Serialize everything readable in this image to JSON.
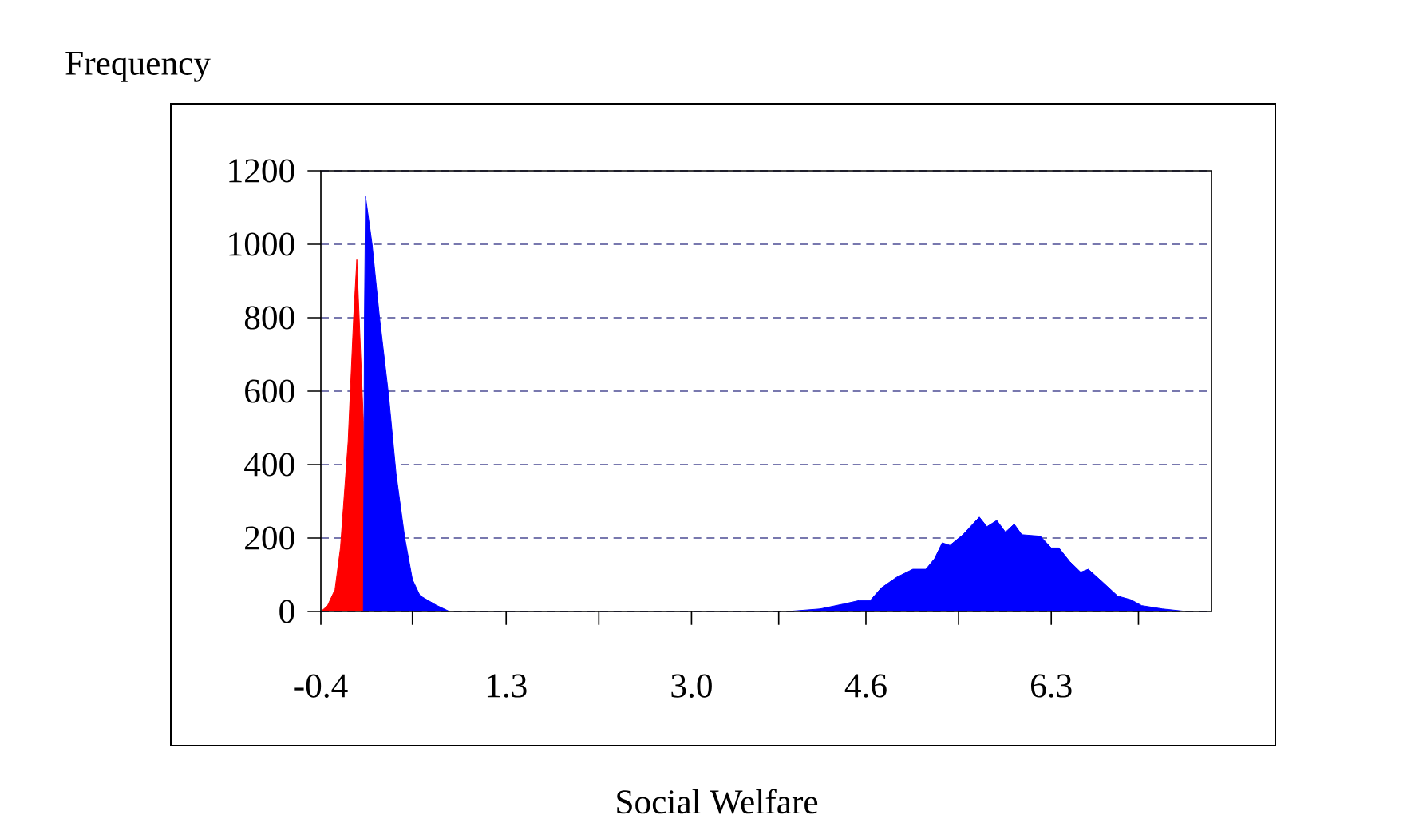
{
  "chart_data": {
    "type": "area",
    "xlabel": "Social Welfare",
    "ylabel": "Frequency",
    "series": [
      {
        "color": "#ff0000",
        "x": [
          -0.4,
          -0.34,
          -0.27,
          -0.22,
          -0.15,
          -0.1,
          -0.07,
          -0.01,
          0.0
        ],
        "values": [
          0,
          15,
          60,
          174,
          462,
          796,
          958,
          520,
          0
        ]
      },
      {
        "color": "#0000ff",
        "x": [
          -0.01,
          0.0,
          0.01,
          0.07,
          0.14,
          0.22,
          0.29,
          0.37,
          0.44,
          0.51,
          0.66,
          0.78,
          3.88,
          4.18,
          4.39,
          4.54,
          4.64,
          4.74,
          4.88,
          5.03,
          5.15,
          5.23,
          5.3,
          5.37,
          5.49,
          5.64,
          5.71,
          5.8,
          5.88,
          5.96,
          6.03,
          6.2,
          6.3,
          6.37,
          6.47,
          6.57,
          6.64,
          6.76,
          6.91,
          7.03,
          7.13,
          7.32,
          7.54
        ],
        "values": [
          0,
          800,
          1130,
          1000,
          796,
          593,
          375,
          200,
          87,
          43,
          17,
          0,
          0,
          7,
          20,
          30,
          30,
          64,
          93,
          115,
          115,
          144,
          187,
          180,
          209,
          257,
          231,
          248,
          216,
          238,
          209,
          205,
          173,
          173,
          136,
          107,
          115,
          83,
          42,
          32,
          16,
          7,
          0
        ]
      }
    ],
    "xlim": [
      -0.4,
      7.77
    ],
    "ylim": [
      0,
      1200
    ],
    "xticks": [
      -0.4,
      {
        "value": 0.44,
        "label": null
      },
      1.3,
      {
        "value": 2.15,
        "label": null
      },
      {
        "value": 3.0,
        "label": "3.0"
      },
      {
        "value": 3.8,
        "label": null
      },
      4.6,
      {
        "value": 5.45,
        "label": null
      },
      6.3,
      {
        "value": 7.1,
        "label": null
      }
    ],
    "yticks": [
      0,
      200,
      400,
      600,
      800,
      1000,
      1200
    ],
    "grid": "y"
  }
}
